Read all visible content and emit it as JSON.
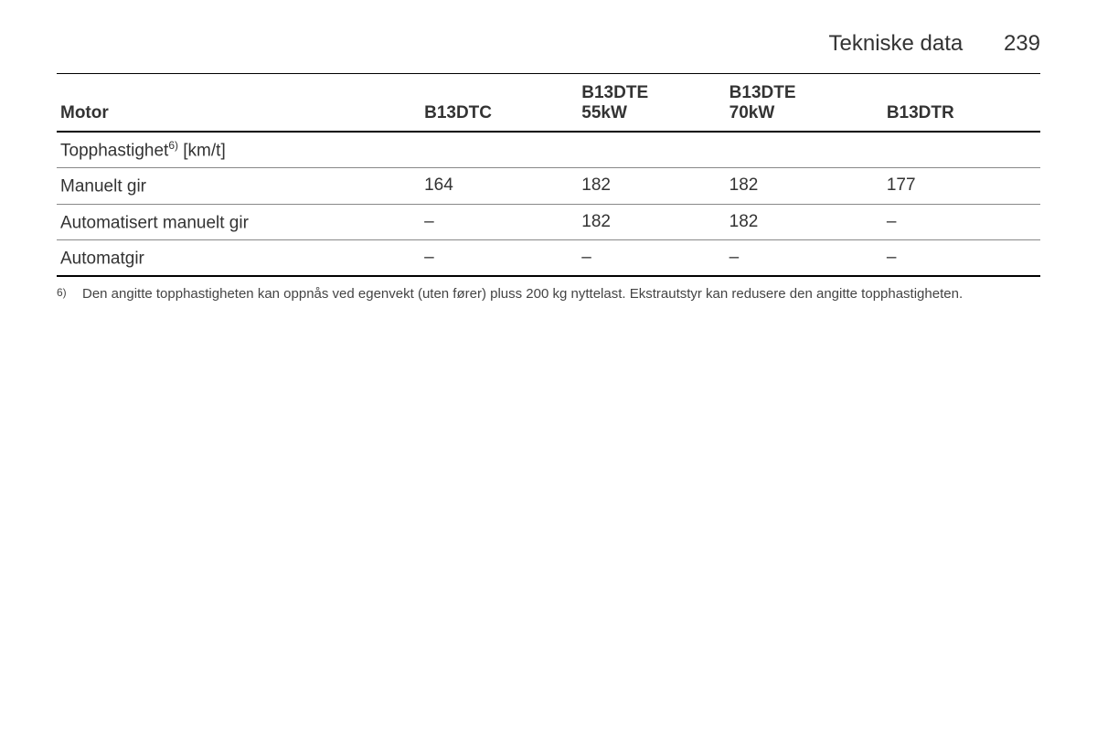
{
  "header": {
    "section_title": "Tekniske data",
    "page_number": "239"
  },
  "table": {
    "columns": {
      "label": "Motor",
      "c1": "B13DTC",
      "c2_line1": "B13DTE",
      "c2_line2": "55kW",
      "c3_line1": "B13DTE",
      "c3_line2": "70kW",
      "c4": "B13DTR"
    },
    "rows": [
      {
        "label_pre": "Topphastighet",
        "label_sup": "6)",
        "label_post": " [km/t]",
        "v1": "",
        "v2": "",
        "v3": "",
        "v4": ""
      },
      {
        "label_pre": "Manuelt gir",
        "label_sup": "",
        "label_post": "",
        "v1": "164",
        "v2": "182",
        "v3": "182",
        "v4": "177"
      },
      {
        "label_pre": "Automatisert manuelt gir",
        "label_sup": "",
        "label_post": "",
        "v1": "–",
        "v2": "182",
        "v3": "182",
        "v4": "–"
      },
      {
        "label_pre": "Automatgir",
        "label_sup": "",
        "label_post": "",
        "v1": "–",
        "v2": "–",
        "v3": "–",
        "v4": "–"
      }
    ]
  },
  "footnote": {
    "marker": "6)",
    "text": "Den angitte topphastigheten kan oppnås ved egenvekt (uten fører) pluss 200 kg nyttelast. Ekstrautstyr kan redusere den angitte topphastigheten."
  }
}
